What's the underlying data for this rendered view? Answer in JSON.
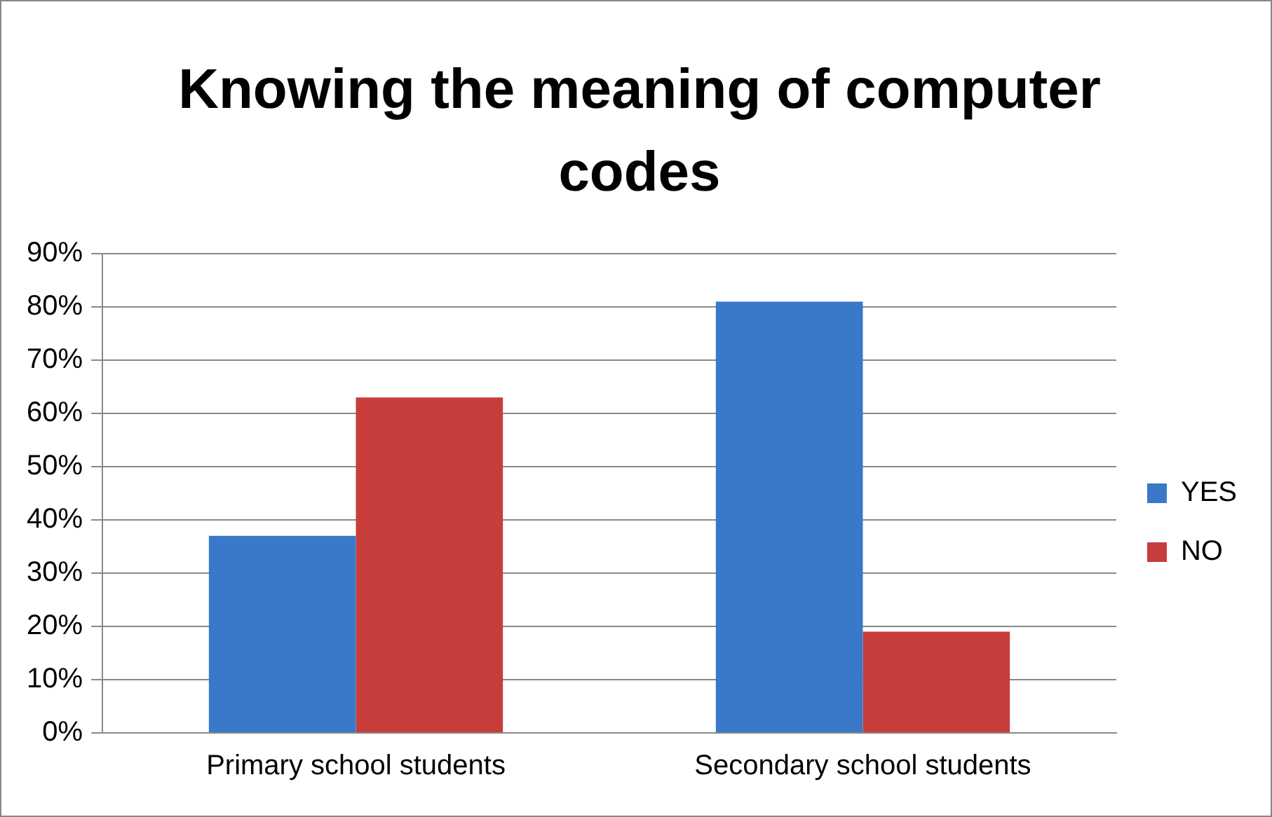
{
  "chart_data": {
    "type": "bar",
    "title": "Knowing the meaning of computer codes",
    "categories": [
      "Primary school students",
      "Secondary school students"
    ],
    "series": [
      {
        "name": "YES",
        "color": "#3a78c9",
        "values": [
          37,
          81
        ]
      },
      {
        "name": "NO",
        "color": "#c63d3b",
        "values": [
          63,
          19
        ]
      }
    ],
    "ylim": [
      0,
      90
    ],
    "yticks": [
      {
        "value": 0,
        "label": "0%"
      },
      {
        "value": 10,
        "label": "10%"
      },
      {
        "value": 20,
        "label": "20%"
      },
      {
        "value": 30,
        "label": "30%"
      },
      {
        "value": 40,
        "label": "40%"
      },
      {
        "value": 50,
        "label": "50%"
      },
      {
        "value": 60,
        "label": "60%"
      },
      {
        "value": 70,
        "label": "70%"
      },
      {
        "value": 80,
        "label": "80%"
      },
      {
        "value": 90,
        "label": "90%"
      }
    ],
    "grid": "y",
    "legend": "right"
  }
}
